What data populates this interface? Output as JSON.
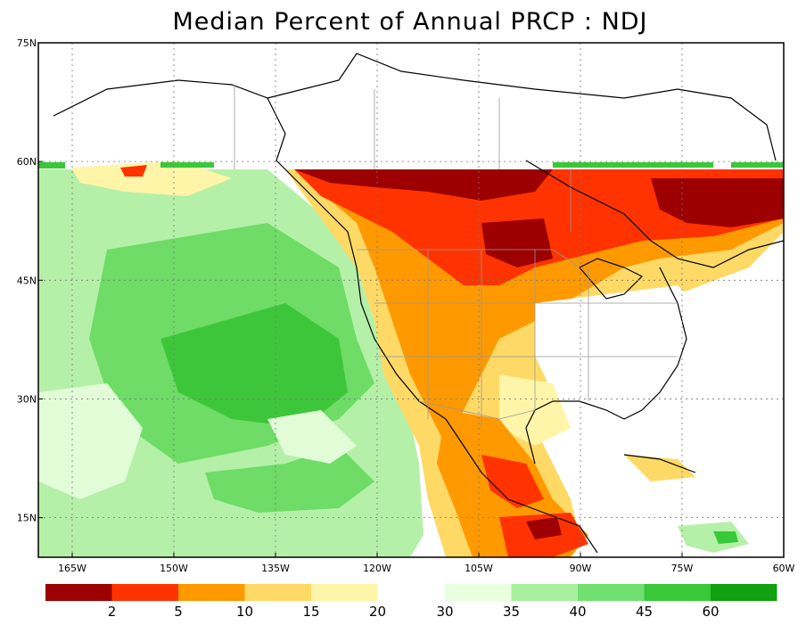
{
  "title": "Median Percent of Annual PRCP  :  NDJ",
  "axes": {
    "lat_ticks": [
      {
        "value": 75,
        "label": "75N"
      },
      {
        "value": 60,
        "label": "60N"
      },
      {
        "value": 45,
        "label": "45N"
      },
      {
        "value": 30,
        "label": "30N"
      },
      {
        "value": 15,
        "label": "15N"
      }
    ],
    "lon_ticks": [
      {
        "value": -165,
        "label": "165W"
      },
      {
        "value": -150,
        "label": "150W"
      },
      {
        "value": -135,
        "label": "135W"
      },
      {
        "value": -120,
        "label": "120W"
      },
      {
        "value": -105,
        "label": "105W"
      },
      {
        "value": -90,
        "label": "90W"
      },
      {
        "value": -75,
        "label": "75W"
      },
      {
        "value": -60,
        "label": "60W"
      }
    ],
    "lon_range": [
      -170,
      -60
    ],
    "lat_range": [
      10,
      75
    ],
    "grid": "dotted"
  },
  "legend": {
    "dry_colors": [
      "#9c0000",
      "#ff3300",
      "#ff9900",
      "#ffd966",
      "#fff5a8"
    ],
    "dry_labels": [
      "2",
      "5",
      "10",
      "15",
      "20"
    ],
    "wet_colors": [
      "#e8ffe0",
      "#a8f0a0",
      "#70e070",
      "#38c838",
      "#10a010"
    ],
    "wet_labels": [
      "30",
      "35",
      "40",
      "45",
      "60"
    ]
  }
}
